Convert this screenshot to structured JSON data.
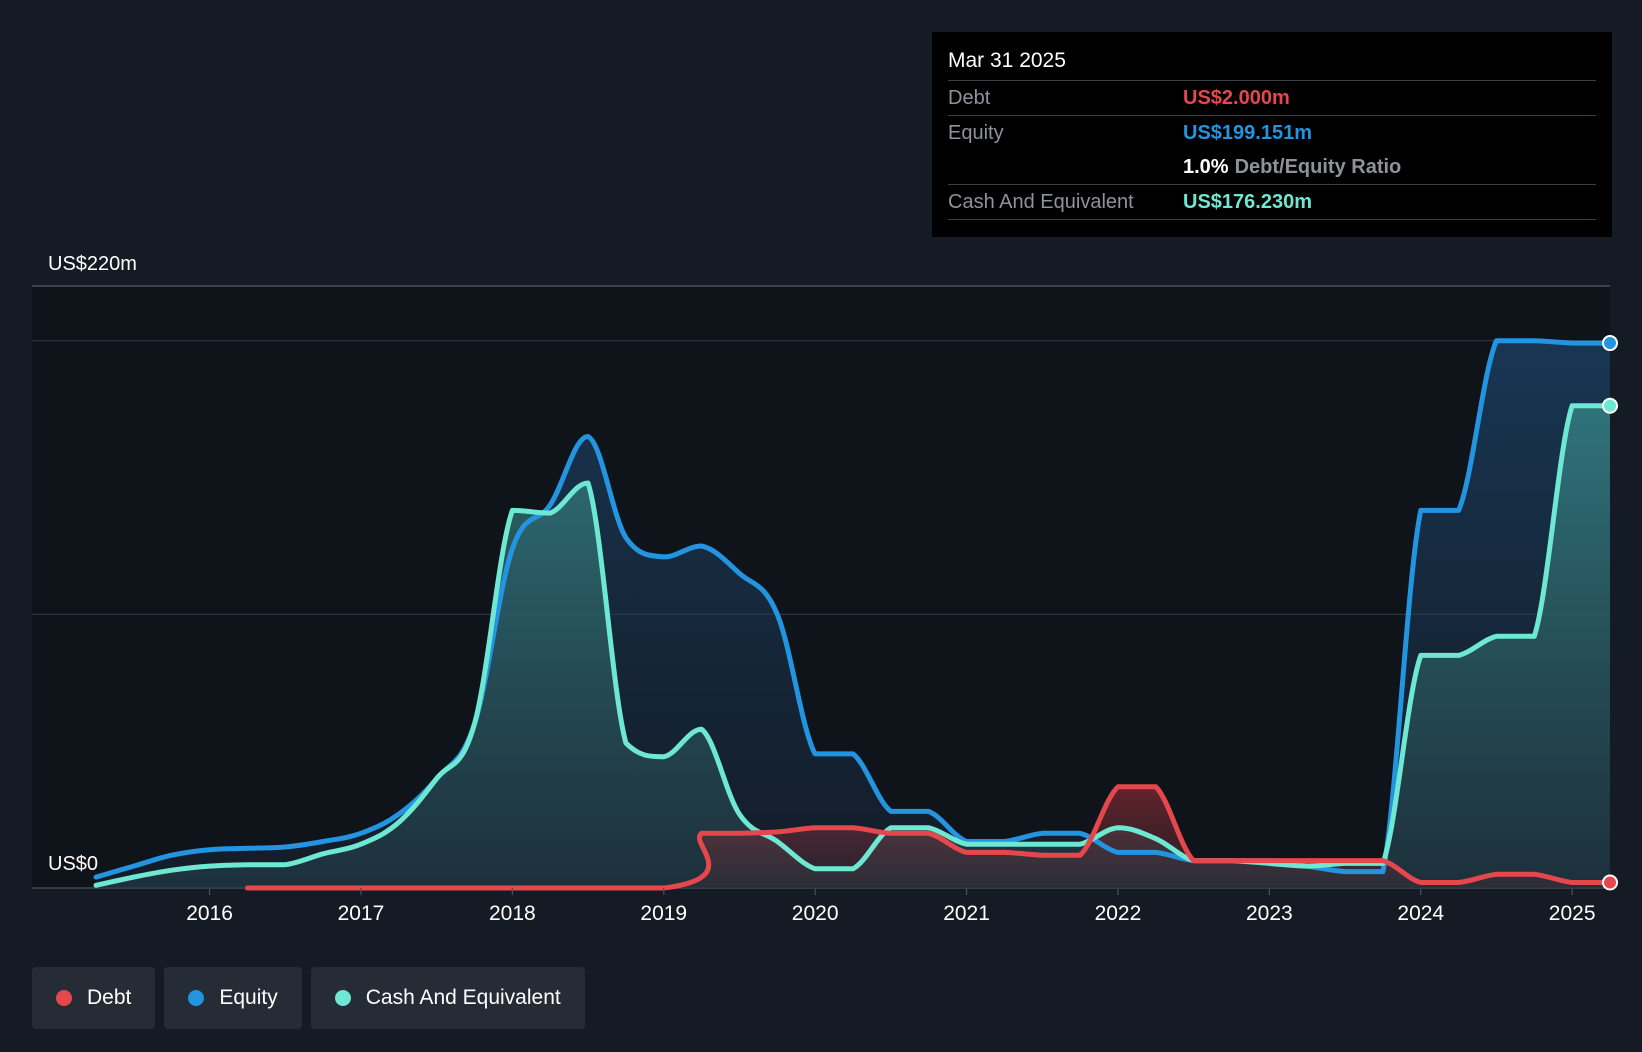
{
  "tooltip": {
    "date": "Mar 31 2025",
    "debt_label": "Debt",
    "debt_value": "US$2.000m",
    "equity_label": "Equity",
    "equity_value": "US$199.151m",
    "ratio_value": "1.0%",
    "ratio_label": "Debt/Equity Ratio",
    "cash_label": "Cash And Equivalent",
    "cash_value": "US$176.230m"
  },
  "legend": {
    "debt": "Debt",
    "equity": "Equity",
    "cash": "Cash And Equivalent"
  },
  "colors": {
    "debt": "#e5474d",
    "equity": "#2394df",
    "cash": "#6ee7d3"
  },
  "chart_data": {
    "type": "area",
    "y_top_label": "US$220m",
    "y_bottom_label": "US$0",
    "ylim": [
      0,
      220
    ],
    "xlim": [
      2015.25,
      2025.25
    ],
    "grid": true,
    "x_ticks": [
      2016,
      2017,
      2018,
      2019,
      2020,
      2021,
      2022,
      2023,
      2024,
      2025
    ],
    "x_tick_labels": [
      "2016",
      "2017",
      "2018",
      "2019",
      "2020",
      "2021",
      "2022",
      "2023",
      "2024",
      "2025"
    ],
    "series": [
      {
        "name": "Debt",
        "key": "debt",
        "points": [
          [
            2016.25,
            0
          ],
          [
            2019.0,
            0
          ],
          [
            2019.25,
            20
          ],
          [
            2019.5,
            20
          ],
          [
            2019.75,
            20.5
          ],
          [
            2020.0,
            22
          ],
          [
            2020.25,
            22
          ],
          [
            2020.5,
            20
          ],
          [
            2020.75,
            20
          ],
          [
            2021.0,
            13
          ],
          [
            2021.25,
            13
          ],
          [
            2021.5,
            12
          ],
          [
            2021.75,
            12
          ],
          [
            2022.0,
            37
          ],
          [
            2022.25,
            37
          ],
          [
            2022.5,
            10
          ],
          [
            2022.75,
            10
          ],
          [
            2023.0,
            10
          ],
          [
            2023.25,
            10
          ],
          [
            2023.5,
            10
          ],
          [
            2023.75,
            10
          ],
          [
            2024.0,
            2
          ],
          [
            2024.25,
            2
          ],
          [
            2024.5,
            5
          ],
          [
            2024.75,
            5
          ],
          [
            2025.0,
            2
          ],
          [
            2025.25,
            2
          ]
        ]
      },
      {
        "name": "Equity",
        "key": "equity",
        "points": [
          [
            2015.25,
            4
          ],
          [
            2015.5,
            8
          ],
          [
            2015.75,
            12
          ],
          [
            2016.0,
            14
          ],
          [
            2016.25,
            14.5
          ],
          [
            2016.5,
            15
          ],
          [
            2016.75,
            17
          ],
          [
            2017.0,
            20
          ],
          [
            2017.25,
            27
          ],
          [
            2017.5,
            40
          ],
          [
            2017.75,
            60
          ],
          [
            2018.0,
            124
          ],
          [
            2018.25,
            140
          ],
          [
            2018.5,
            165
          ],
          [
            2018.75,
            128
          ],
          [
            2019.0,
            121
          ],
          [
            2019.25,
            125
          ],
          [
            2019.5,
            115
          ],
          [
            2019.75,
            100
          ],
          [
            2020.0,
            49
          ],
          [
            2020.25,
            49
          ],
          [
            2020.5,
            28
          ],
          [
            2020.75,
            28
          ],
          [
            2021.0,
            17
          ],
          [
            2021.25,
            17
          ],
          [
            2021.5,
            20
          ],
          [
            2021.75,
            20
          ],
          [
            2022.0,
            13
          ],
          [
            2022.25,
            13
          ],
          [
            2022.5,
            10
          ],
          [
            2022.75,
            10
          ],
          [
            2023.0,
            10
          ],
          [
            2023.25,
            8
          ],
          [
            2023.5,
            6
          ],
          [
            2023.75,
            6
          ],
          [
            2024.0,
            138
          ],
          [
            2024.25,
            138
          ],
          [
            2024.5,
            200
          ],
          [
            2024.75,
            200
          ],
          [
            2025.0,
            199.151
          ],
          [
            2025.25,
            199.151
          ]
        ]
      },
      {
        "name": "Cash And Equivalent",
        "key": "cash",
        "points": [
          [
            2015.25,
            1
          ],
          [
            2015.5,
            4
          ],
          [
            2015.75,
            6.5
          ],
          [
            2016.0,
            8
          ],
          [
            2016.25,
            8.5
          ],
          [
            2016.5,
            8.5
          ],
          [
            2016.75,
            12.5
          ],
          [
            2017.0,
            16
          ],
          [
            2017.25,
            24
          ],
          [
            2017.5,
            40
          ],
          [
            2017.75,
            60
          ],
          [
            2018.0,
            138
          ],
          [
            2018.25,
            137
          ],
          [
            2018.5,
            148
          ],
          [
            2018.75,
            53
          ],
          [
            2019.0,
            48
          ],
          [
            2019.25,
            58
          ],
          [
            2019.5,
            27
          ],
          [
            2019.75,
            17
          ],
          [
            2020.0,
            7
          ],
          [
            2020.25,
            7
          ],
          [
            2020.5,
            22
          ],
          [
            2020.75,
            22
          ],
          [
            2021.0,
            16
          ],
          [
            2021.25,
            16
          ],
          [
            2021.5,
            16
          ],
          [
            2021.75,
            16
          ],
          [
            2022.0,
            22
          ],
          [
            2022.25,
            18
          ],
          [
            2022.5,
            10
          ],
          [
            2022.75,
            10
          ],
          [
            2023.0,
            9
          ],
          [
            2023.25,
            8
          ],
          [
            2023.5,
            9
          ],
          [
            2023.75,
            9
          ],
          [
            2024.0,
            85
          ],
          [
            2024.25,
            85
          ],
          [
            2024.5,
            92
          ],
          [
            2024.75,
            92
          ],
          [
            2025.0,
            176.23
          ],
          [
            2025.25,
            176.23
          ]
        ]
      }
    ]
  }
}
